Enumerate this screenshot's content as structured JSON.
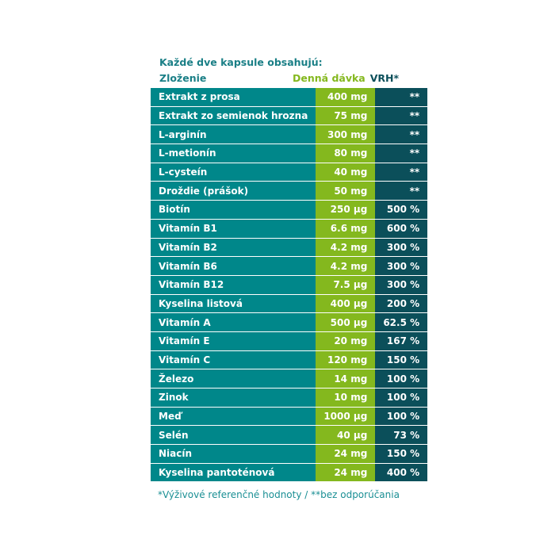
{
  "title": "Každé dve kapsule obsahujú:",
  "headers": {
    "name": "Zloženie",
    "dose": "Denná dávka",
    "vrh": "VRH*"
  },
  "rows": [
    {
      "name": "Extrakt z prosa",
      "dose": "400 mg",
      "vrh": "**"
    },
    {
      "name": "Extrakt zo semienok hrozna",
      "dose": "75 mg",
      "vrh": "**"
    },
    {
      "name": "L-arginín",
      "dose": "300 mg",
      "vrh": "**"
    },
    {
      "name": "L-metionín",
      "dose": "80 mg",
      "vrh": "**"
    },
    {
      "name": "L-cysteín",
      "dose": "40 mg",
      "vrh": "**"
    },
    {
      "name": "Droždie (prášok)",
      "dose": "50 mg",
      "vrh": "**"
    },
    {
      "name": "Biotín",
      "dose": "250 µg",
      "vrh": "500 %"
    },
    {
      "name": "Vitamín B1",
      "dose": "6.6 mg",
      "vrh": "600 %"
    },
    {
      "name": "Vitamín B2",
      "dose": "4.2 mg",
      "vrh": "300 %"
    },
    {
      "name": "Vitamín B6",
      "dose": "4.2 mg",
      "vrh": "300 %"
    },
    {
      "name": "Vitamín B12",
      "dose": "7.5 µg",
      "vrh": "300 %"
    },
    {
      "name": "Kyselina listová",
      "dose": "400 µg",
      "vrh": "200 %"
    },
    {
      "name": "Vitamín A",
      "dose": "500 µg",
      "vrh": "62.5 %"
    },
    {
      "name": "Vitamín E",
      "dose": "20 mg",
      "vrh": "167 %"
    },
    {
      "name": "Vitamín C",
      "dose": "120 mg",
      "vrh": "150 %"
    },
    {
      "name": "Železo",
      "dose": "14 mg",
      "vrh": "100 %"
    },
    {
      "name": "Zinok",
      "dose": "10 mg",
      "vrh": "100 %"
    },
    {
      "name": "Meď",
      "dose": "1000 µg",
      "vrh": "100 %"
    },
    {
      "name": "Selén",
      "dose": "40 µg",
      "vrh": "73 %"
    },
    {
      "name": "Niacín",
      "dose": "24 mg",
      "vrh": "150 %"
    },
    {
      "name": "Kyselina pantoténová",
      "dose": "24 mg",
      "vrh": "400 %"
    }
  ],
  "footnote": "*Výživové referenčné hodnoty / **bez odporúčania",
  "colors": {
    "name_col": "#00878a",
    "dose_col": "#84b81e",
    "vrh_col": "#0b4f5a"
  }
}
